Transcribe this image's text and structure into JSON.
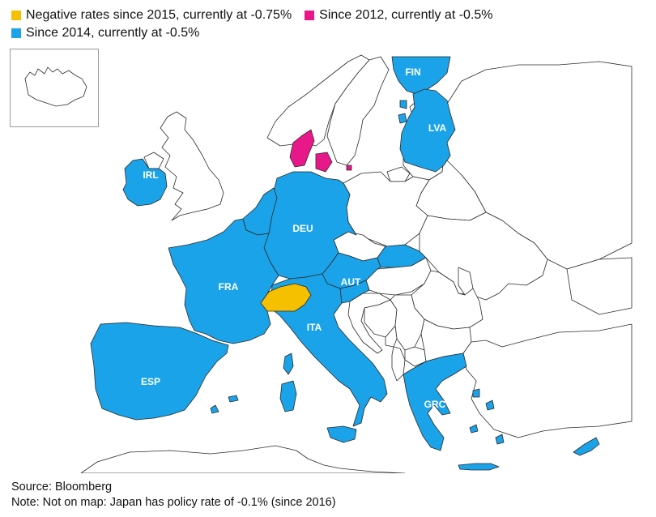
{
  "colors": {
    "negative_2015": "#f5c000",
    "since_2012": "#e8188a",
    "since_2014": "#1aa3e8",
    "other_land": "#ffffff",
    "border": "#2a2a2a",
    "inset_border": "#9a9a9a"
  },
  "legend": [
    {
      "key": "negative_2015",
      "label": "Negative rates since 2015, currently at -0.75%"
    },
    {
      "key": "since_2012",
      "label": "Since 2012, currently at -0.5%"
    },
    {
      "key": "since_2014",
      "label": "Since 2014, currently at -0.5%"
    }
  ],
  "countries": {
    "fin": "FIN",
    "lva": "LVA",
    "irl": "IRL",
    "deu": "DEU",
    "fra": "FRA",
    "aut": "AUT",
    "ita": "ITA",
    "esp": "ESP",
    "grc": "GRC"
  },
  "map_categories": {
    "negative_2015": [
      "Switzerland"
    ],
    "since_2012": [
      "Denmark"
    ],
    "since_2014": [
      "FIN",
      "LVA",
      "IRL",
      "DEU",
      "FRA",
      "AUT",
      "ITA",
      "ESP",
      "GRC"
    ]
  },
  "footer": {
    "source": "Source: Bloomberg",
    "note": "Note: Not on map: Japan has policy rate of -0.1% (since 2016)"
  }
}
